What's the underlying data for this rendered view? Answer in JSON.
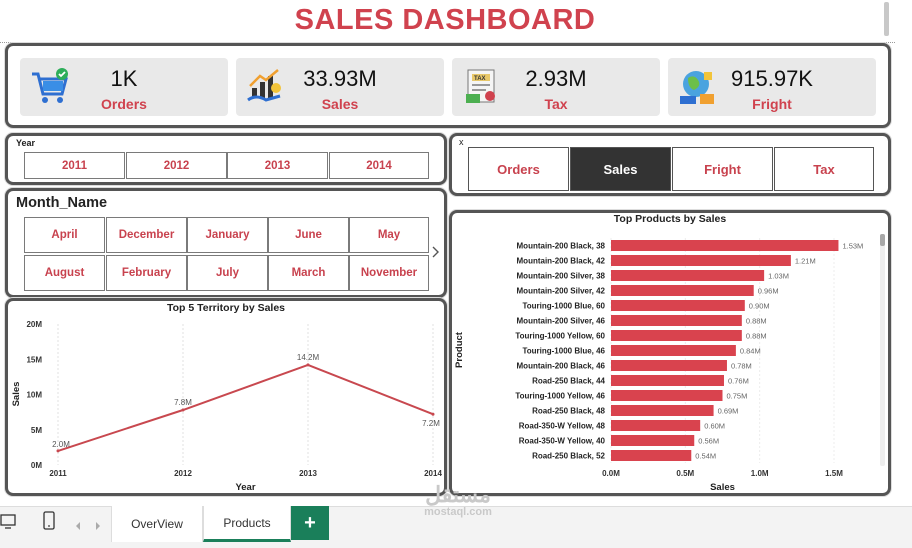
{
  "header": {
    "title": "SALES DASHBOARD"
  },
  "kpis": [
    {
      "value": "1K",
      "label": "Orders",
      "icon": "shopping-cart-icon"
    },
    {
      "value": "33.93M",
      "label": "Sales",
      "icon": "sales-growth-icon"
    },
    {
      "value": "2.93M",
      "label": "Tax",
      "icon": "tax-document-icon"
    },
    {
      "value": "915.97K",
      "label": "Fright",
      "icon": "globe-shipping-icon"
    }
  ],
  "year_slicer": {
    "label": "Year",
    "options": [
      "2011",
      "2012",
      "2013",
      "2014"
    ]
  },
  "measure_slicer": {
    "label": "x",
    "options": [
      "Orders",
      "Sales",
      "Fright",
      "Tax"
    ],
    "selected": "Sales"
  },
  "month_slicer": {
    "label": "Month_Name",
    "options": [
      "April",
      "December",
      "January",
      "June",
      "May",
      "August",
      "February",
      "July",
      "March",
      "November"
    ]
  },
  "bottom": {
    "tabs": [
      "OverView",
      "Products"
    ],
    "active_tab": "Products",
    "add_label": "+",
    "watermark": "مستقل",
    "watermark_sub": "mostaql.com"
  },
  "colors": {
    "accent": "#d0424e",
    "bar": "#d9434e",
    "line": "#c8484f",
    "green": "#1a7f5a"
  },
  "chart_data": [
    {
      "type": "line",
      "title": "Top 5 Territory by Sales",
      "xlabel": "Year",
      "ylabel": "Sales",
      "x": [
        "2011",
        "2012",
        "2013",
        "2014"
      ],
      "values": [
        2.0,
        7.8,
        14.2,
        7.2
      ],
      "data_labels": [
        "2.0M",
        "7.8M",
        "14.2M",
        "7.2M"
      ],
      "ylim": [
        0,
        20
      ],
      "yticks": [
        "0M",
        "5M",
        "10M",
        "15M",
        "20M"
      ]
    },
    {
      "type": "bar",
      "orientation": "horizontal",
      "title": "Top Products by Sales",
      "xlabel": "Sales",
      "ylabel": "Product",
      "categories": [
        "Mountain-200 Black, 38",
        "Mountain-200 Black, 42",
        "Mountain-200 Silver, 38",
        "Mountain-200 Silver, 42",
        "Touring-1000 Blue, 60",
        "Mountain-200 Silver, 46",
        "Touring-1000 Yellow, 60",
        "Touring-1000 Blue, 46",
        "Mountain-200 Black, 46",
        "Road-250 Black, 44",
        "Touring-1000 Yellow, 46",
        "Road-250 Black, 48",
        "Road-350-W Yellow, 48",
        "Road-350-W Yellow, 40",
        "Road-250 Black, 52"
      ],
      "values": [
        1.53,
        1.21,
        1.03,
        0.96,
        0.9,
        0.88,
        0.88,
        0.84,
        0.78,
        0.76,
        0.75,
        0.69,
        0.6,
        0.56,
        0.54
      ],
      "data_labels": [
        "1.53M",
        "1.21M",
        "1.03M",
        "0.96M",
        "0.90M",
        "0.88M",
        "0.88M",
        "0.84M",
        "0.78M",
        "0.76M",
        "0.75M",
        "0.69M",
        "0.60M",
        "0.56M",
        "0.54M"
      ],
      "xlim": [
        0,
        1.5
      ],
      "xticks": [
        "0.0M",
        "0.5M",
        "1.0M",
        "1.5M"
      ]
    }
  ]
}
